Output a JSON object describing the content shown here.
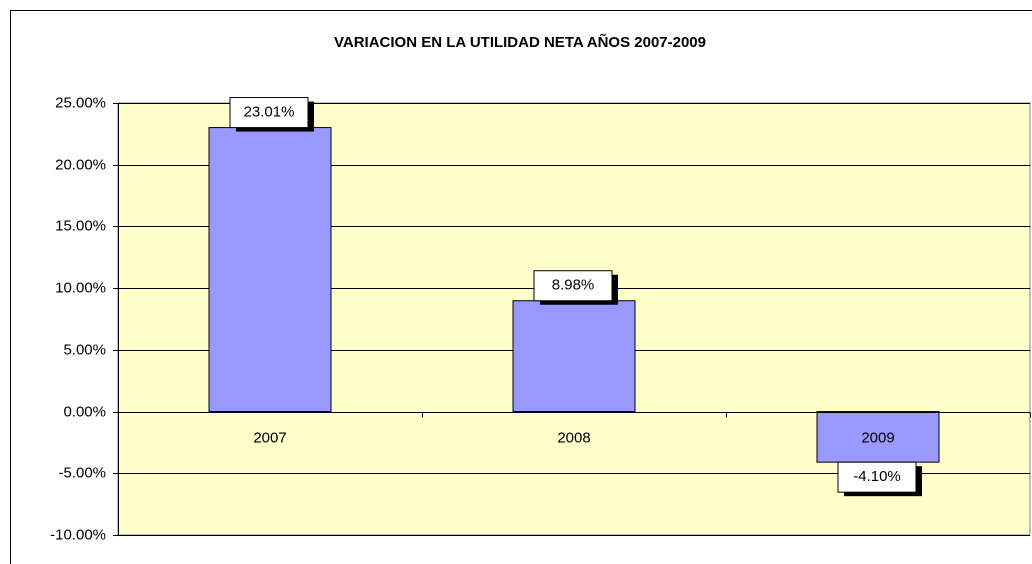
{
  "chart_data": {
    "type": "bar",
    "title": "VARIACION EN LA UTILIDAD NETA AÑOS 2007-2009",
    "categories": [
      "2007",
      "2008",
      "2009"
    ],
    "values": [
      23.01,
      8.98,
      -4.1
    ],
    "value_labels": [
      "23.01%",
      "8.98%",
      "-4.10%"
    ],
    "color": "#9999ff",
    "background": "#ffffcc",
    "ylim": [
      -10,
      25
    ],
    "yticks": [
      {
        "value": 25,
        "label": "25.00%"
      },
      {
        "value": 20,
        "label": "20.00%"
      },
      {
        "value": 15,
        "label": "15.00%"
      },
      {
        "value": 10,
        "label": "10.00%"
      },
      {
        "value": 5,
        "label": "5.00%"
      },
      {
        "value": 0,
        "label": "0.00%"
      },
      {
        "value": -5,
        "label": "-5.00%"
      },
      {
        "value": -10,
        "label": "-10.00%"
      }
    ],
    "grid": true
  }
}
